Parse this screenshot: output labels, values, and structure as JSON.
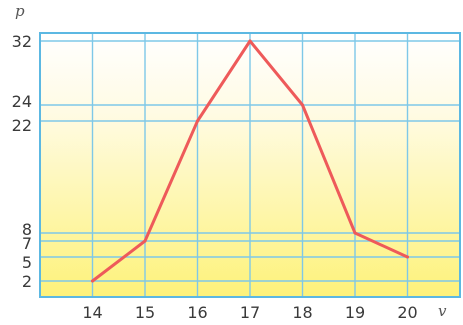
{
  "chart_data": {
    "type": "line",
    "x_axis_name": "v",
    "y_axis_name": "p",
    "x": [
      14,
      15,
      16,
      17,
      18,
      19,
      20
    ],
    "series": [
      {
        "values": [
          2,
          7,
          22,
          32,
          24,
          8,
          5
        ]
      }
    ],
    "x_ticks": [
      "14",
      "15",
      "16",
      "17",
      "18",
      "19",
      "20"
    ],
    "y_ticks": [
      "2",
      "5",
      "7",
      "8",
      "22",
      "24",
      "32"
    ],
    "y_tick_values": [
      2,
      5,
      7,
      8,
      22,
      24,
      32
    ],
    "xlim": [
      13,
      21
    ],
    "ylim": [
      0,
      33
    ],
    "grid": true,
    "colors": {
      "line": "#ee5a5a",
      "grid": "#7ec8e8",
      "background_top": "#ffffff",
      "background_bottom": "#fdf27a",
      "frame": "#5cb8e2"
    }
  }
}
